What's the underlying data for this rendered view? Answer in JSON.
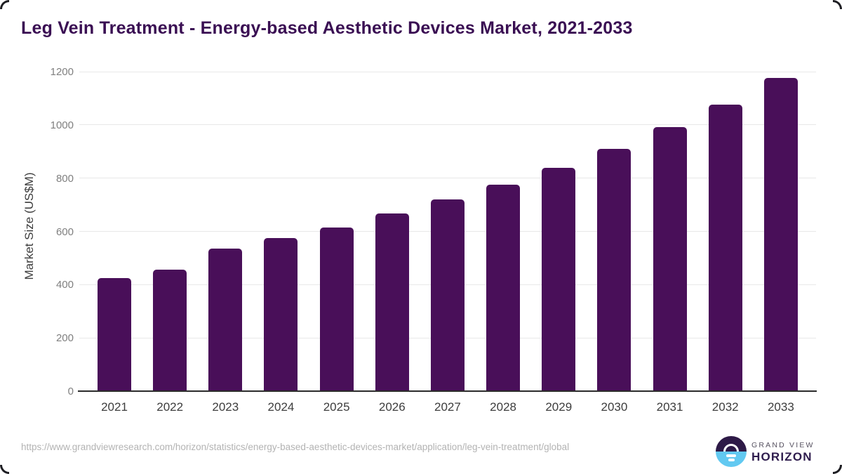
{
  "title": "Leg Vein Treatment - Energy-based Aesthetic Devices Market, 2021-2033",
  "chart_data": {
    "type": "bar",
    "title": "Leg Vein Treatment - Energy-based Aesthetic Devices Market, 2021-2033",
    "categories": [
      "2021",
      "2022",
      "2023",
      "2024",
      "2025",
      "2026",
      "2027",
      "2028",
      "2029",
      "2030",
      "2031",
      "2032",
      "2033"
    ],
    "values": [
      424,
      455,
      535,
      575,
      615,
      666,
      719,
      776,
      840,
      910,
      991,
      1075,
      1175
    ],
    "xlabel": "",
    "ylabel": "Market Size (US$M)",
    "ylim": [
      0,
      1200
    ],
    "yticks": [
      0,
      200,
      400,
      600,
      800,
      1000,
      1200
    ],
    "grid": "horizontal-only",
    "legend": "none",
    "bar_color": "#490f59"
  },
  "footer": {
    "source_url": "https://www.grandviewresearch.com/horizon/statistics/energy-based-aesthetic-devices-market/application/leg-vein-treatment/global",
    "logo": {
      "top_text": "GRAND VIEW",
      "bottom_text": "HORIZON",
      "circle_top_color": "#2e1a47",
      "circle_bottom_color": "#62c9f1"
    }
  },
  "colors": {
    "title_text": "#3a0f53",
    "bar": "#490f59",
    "gridline": "#e8e8e8",
    "axis_line": "#2b2b2b",
    "ytick_text": "#808080",
    "xtick_text": "#3d3d3d",
    "source_text": "#b3b3b3"
  }
}
